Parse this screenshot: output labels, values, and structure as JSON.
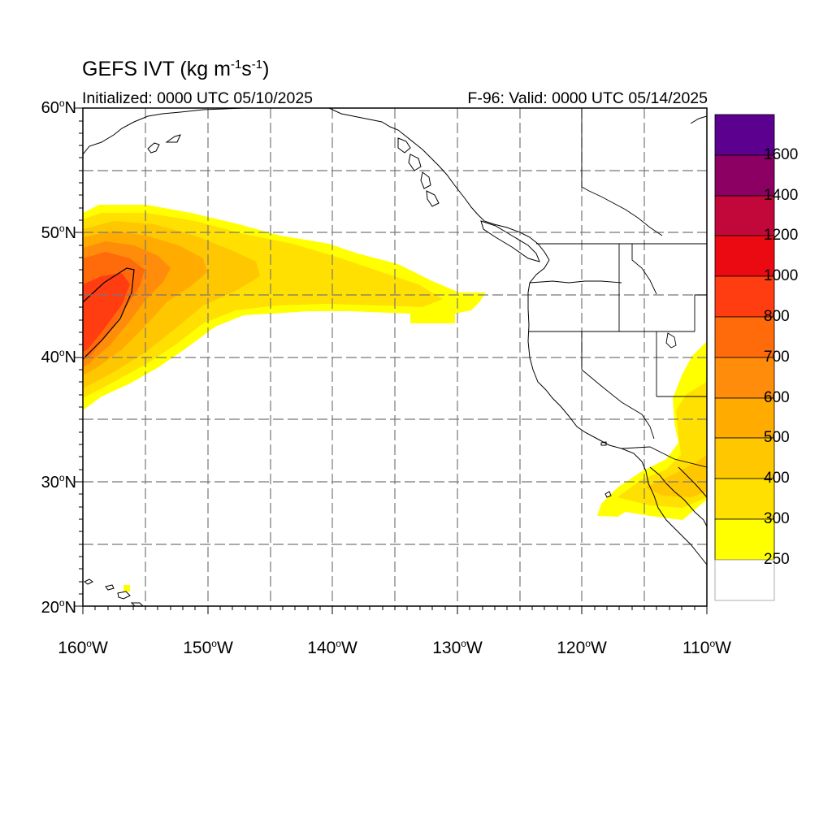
{
  "title": {
    "main": "GEFS IVT (kg m",
    "sup1": "-1",
    "mid": "s",
    "sup2": "-1",
    "end": ")"
  },
  "subtitle_left": "Initialized: 0000 UTC 05/10/2025",
  "subtitle_right": "F-96: Valid: 0000 UTC 05/14/2025",
  "degree_symbol": "o",
  "lat_labels": [
    {
      "deg": "60",
      "hemi": "N"
    },
    {
      "deg": "50",
      "hemi": "N"
    },
    {
      "deg": "40",
      "hemi": "N"
    },
    {
      "deg": "30",
      "hemi": "N"
    },
    {
      "deg": "20",
      "hemi": "N"
    }
  ],
  "lon_labels": [
    {
      "deg": "160",
      "hemi": "W"
    },
    {
      "deg": "150",
      "hemi": "W"
    },
    {
      "deg": "140",
      "hemi": "W"
    },
    {
      "deg": "130",
      "hemi": "W"
    },
    {
      "deg": "120",
      "hemi": "W"
    },
    {
      "deg": "110",
      "hemi": "W"
    }
  ],
  "map_extent": {
    "lon_min": -160,
    "lon_max": -110,
    "lat_min": 20,
    "lat_max": 60
  },
  "colorbar": {
    "labels": [
      "1600",
      "1400",
      "1200",
      "1000",
      "800",
      "700",
      "600",
      "500",
      "400",
      "300",
      "250"
    ],
    "colors": [
      "#5b008f",
      "#8b0062",
      "#c2083a",
      "#ec0a12",
      "#ff3d10",
      "#ff6a0a",
      "#ff8c0a",
      "#ffab00",
      "#ffc700",
      "#ffe000",
      "#ffff00",
      "#ffffff"
    ]
  },
  "ivt_levels": [
    250,
    300,
    400,
    500,
    600,
    700,
    800
  ]
}
